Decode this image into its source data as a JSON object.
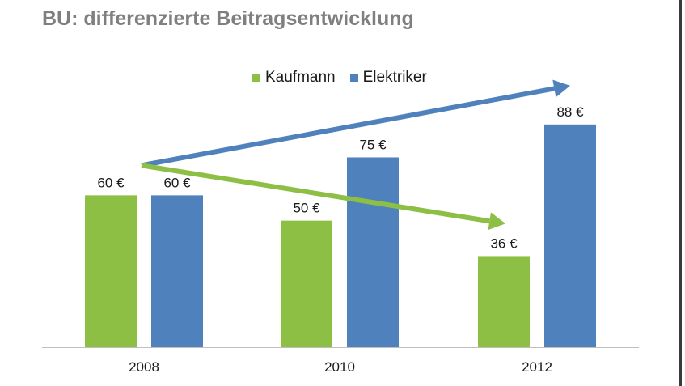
{
  "chart_data": {
    "type": "bar",
    "title": "BU: differenzierte Beitragsentwicklung",
    "categories": [
      "2008",
      "2010",
      "2012"
    ],
    "series": [
      {
        "name": "Kaufmann",
        "values": [
          60,
          50,
          36
        ],
        "labels": [
          "60 €",
          "50 €",
          "36 €"
        ],
        "color": "#8dbf44"
      },
      {
        "name": "Elektriker",
        "values": [
          60,
          75,
          88
        ],
        "labels": [
          "60 €",
          "75 €",
          "88 €"
        ],
        "color": "#4f81bd"
      }
    ],
    "ylim": [
      0,
      118
    ],
    "grid": false,
    "legend_position": "top",
    "trend_arrows": [
      {
        "series": "Elektriker",
        "color": "#4f81bd",
        "from": "2008",
        "to": "2012",
        "direction": "up"
      },
      {
        "series": "Kaufmann",
        "color": "#8dbf44",
        "from": "2008",
        "to": "2012",
        "direction": "down"
      }
    ]
  }
}
